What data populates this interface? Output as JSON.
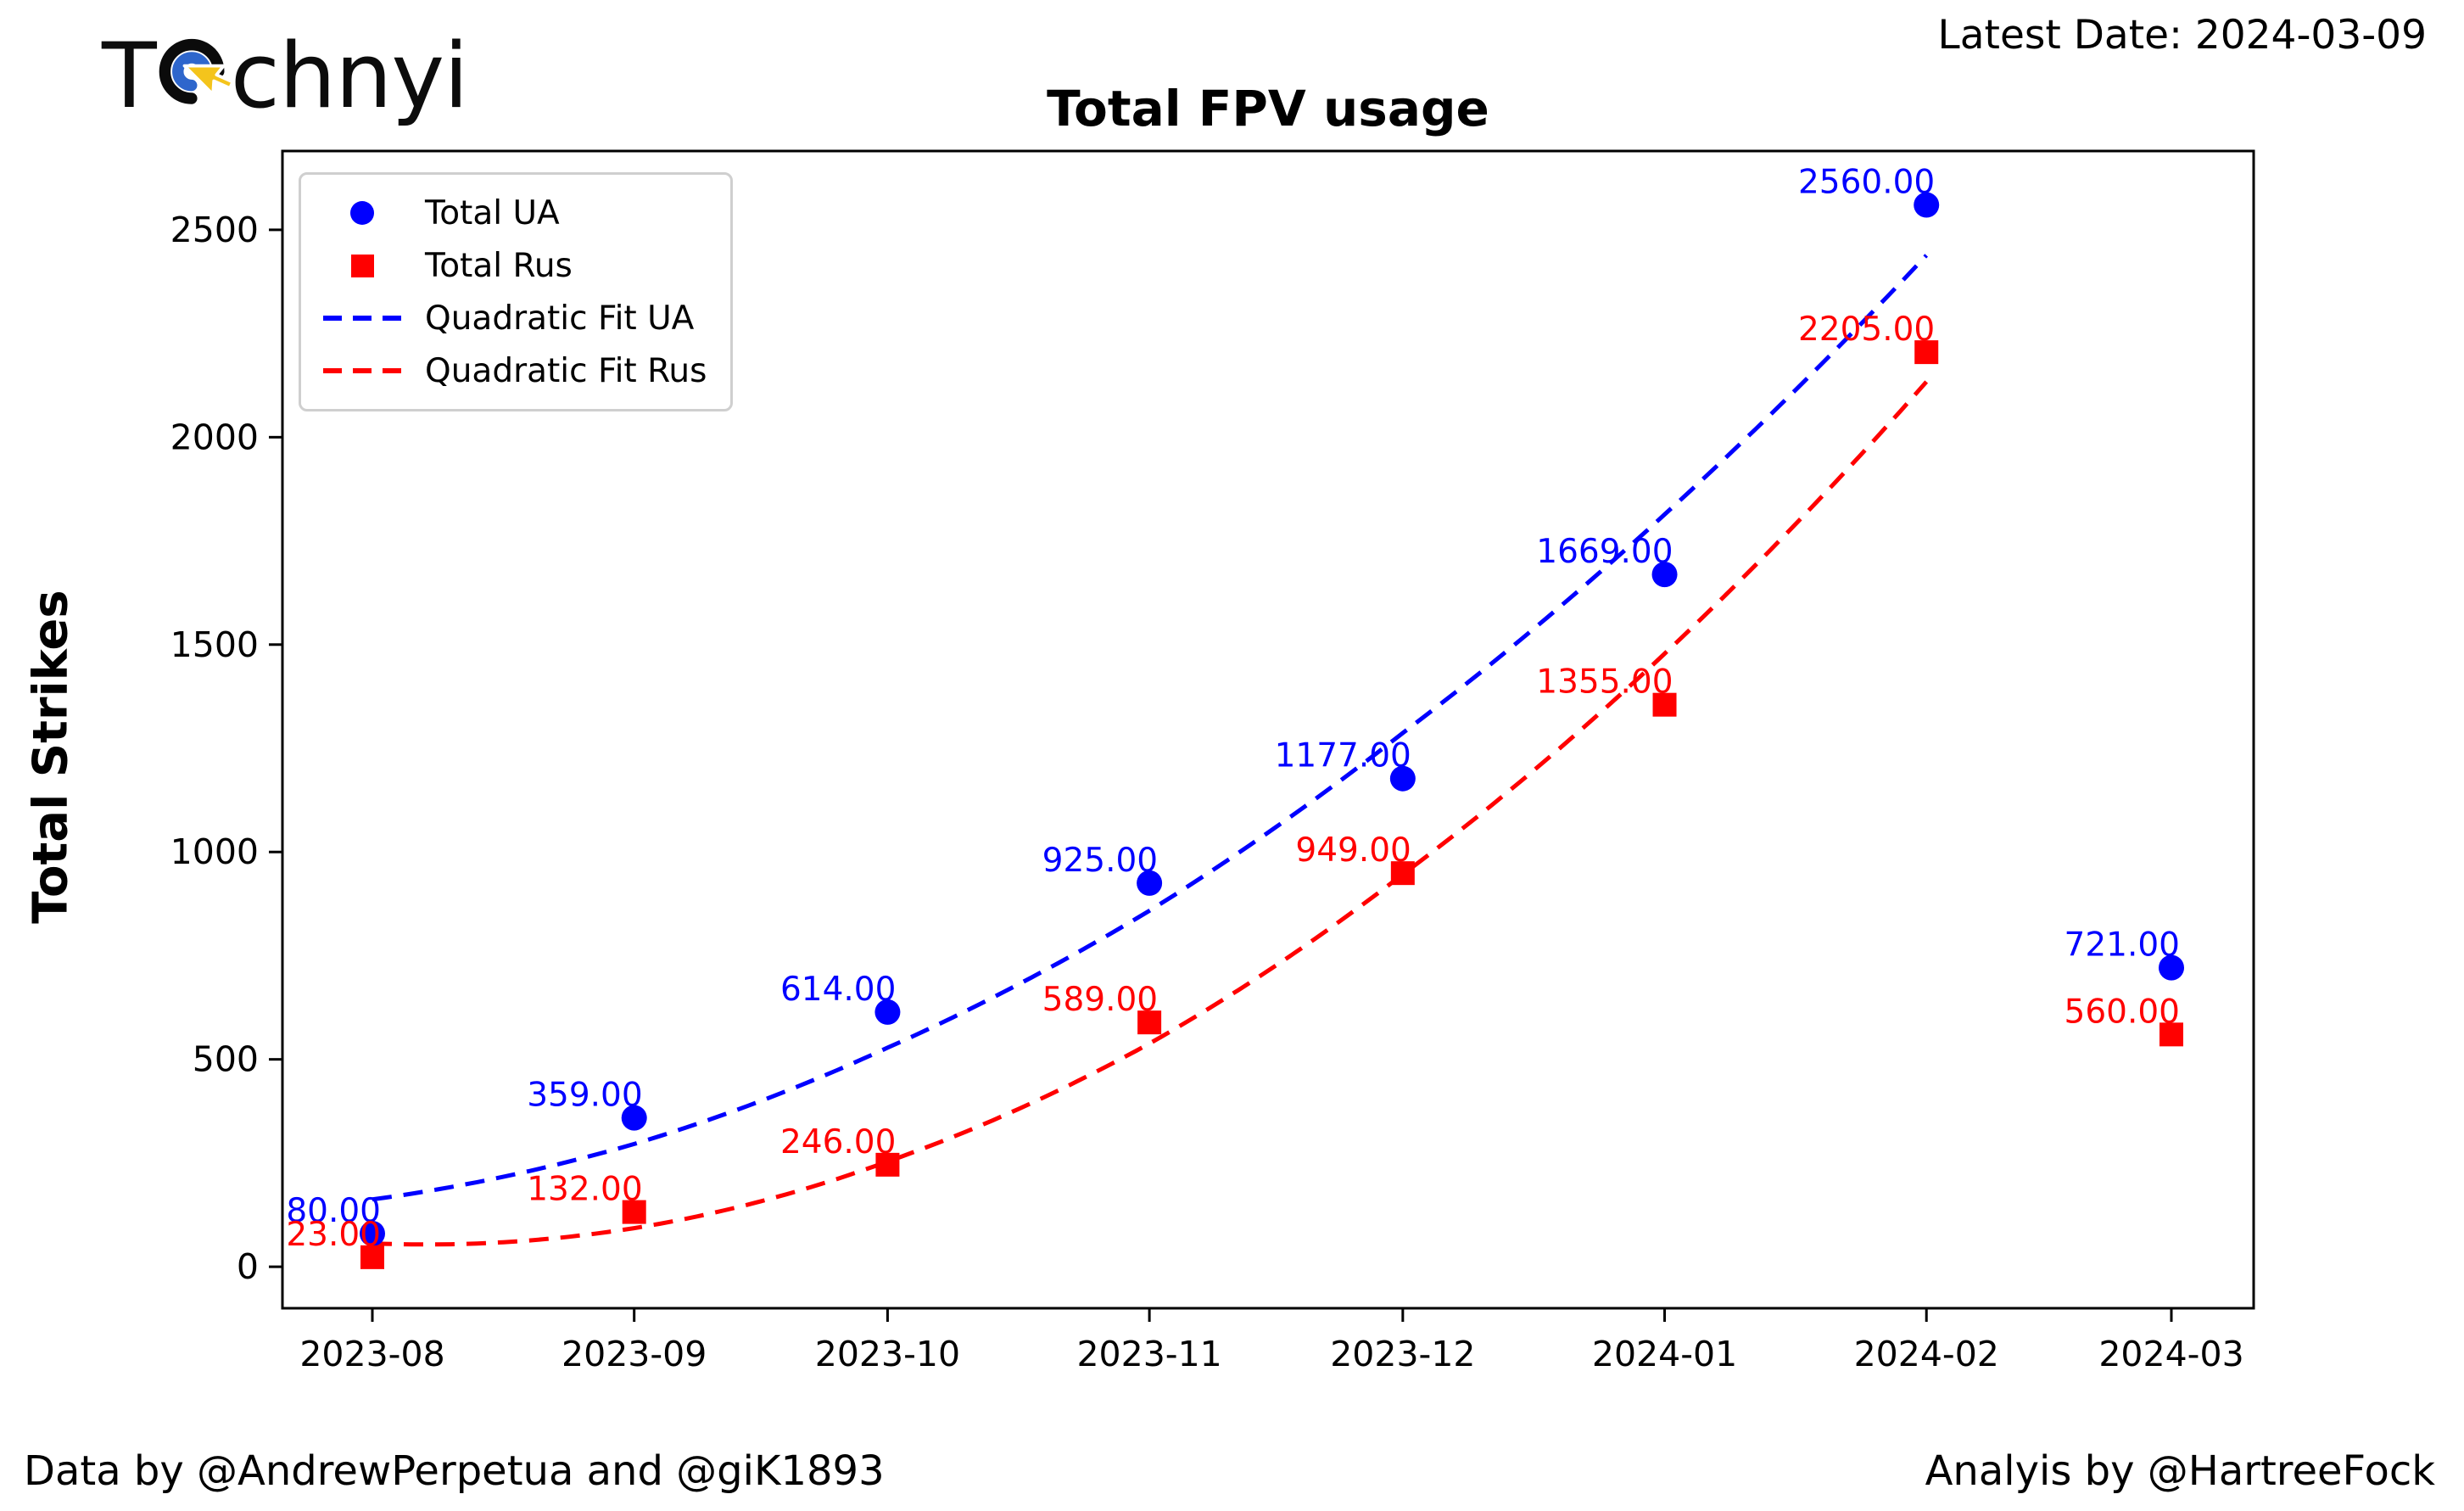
{
  "header": {
    "logo_prefix": "T",
    "logo_suffix": "chnyi",
    "latest_date_label": "Latest Date: 2024-03-09"
  },
  "chart_data": {
    "type": "scatter",
    "title": "Total FPV usage",
    "ylabel": "Total Strikes",
    "xlabel": "",
    "grid": false,
    "legend_position": "upper left",
    "categories": [
      "2023-08",
      "2023-09",
      "2023-10",
      "2023-11",
      "2023-12",
      "2024-01",
      "2024-02",
      "2024-03"
    ],
    "x_day_offsets": [
      0,
      31,
      61,
      92,
      122,
      153,
      184,
      213
    ],
    "yticks": [
      0,
      500,
      1000,
      1500,
      2000,
      2500
    ],
    "ylim": [
      -100,
      2690
    ],
    "series": [
      {
        "name": "Total UA",
        "marker": "circle",
        "color": "#0000ff",
        "values": [
          80,
          359,
          614,
          925,
          1177,
          1669,
          2560,
          721
        ],
        "labels": [
          "80.00",
          "359.00",
          "614.00",
          "925.00",
          "1177.00",
          "1669.00",
          "2560.00",
          "721.00"
        ]
      },
      {
        "name": "Total Rus",
        "marker": "square",
        "color": "#ff0000",
        "values": [
          23,
          132,
          246,
          589,
          949,
          1355,
          2205,
          560
        ],
        "labels": [
          "23.00",
          "132.00",
          "246.00",
          "589.00",
          "949.00",
          "1355.00",
          "2205.00",
          "560.00"
        ]
      }
    ],
    "fits": [
      {
        "name": "Quadratic Fit UA",
        "color": "#0000ff",
        "coeffs": [
          49.13,
          84.61,
          162.33
        ],
        "x_index_range": [
          0,
          6
        ]
      },
      {
        "name": "Quadratic Fit Rus",
        "color": "#ff0000",
        "coeffs": [
          61.89,
          -25.11,
          56.29
        ],
        "x_index_range": [
          0,
          6
        ]
      }
    ]
  },
  "logo_colors": {
    "ring": "#0b0b0b",
    "inner": "#2e66cc",
    "cursor": "#f4c41c"
  },
  "footer": {
    "left": "Data by @AndrewPerpetua and @giK1893",
    "right": "Analyis by @HartreeFock"
  }
}
